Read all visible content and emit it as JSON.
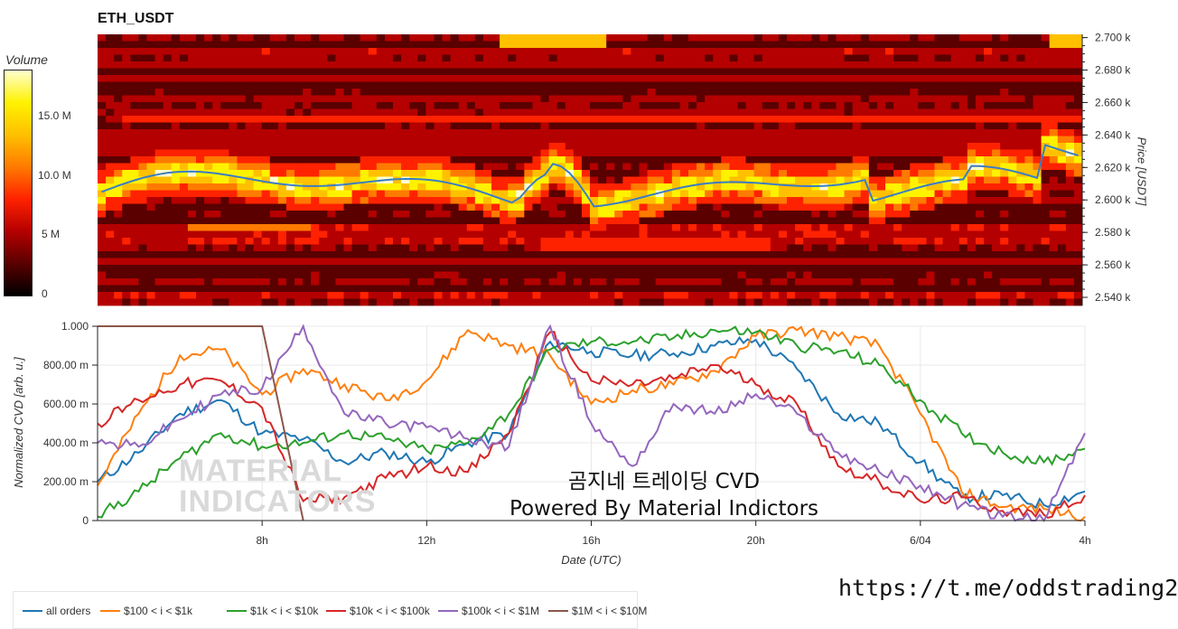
{
  "title": "ETH_USDT",
  "colorbar": {
    "title": "Volume",
    "ticks": [
      "15.0 M",
      "10.0 M",
      "5 M",
      "0"
    ],
    "stops": [
      "#000000",
      "#5a0000",
      "#b40000",
      "#ff2200",
      "#ff7a00",
      "#ffc000",
      "#fff200",
      "#ffffd0"
    ]
  },
  "heatmap": {
    "ylabel": "Price [USDT]",
    "price_ticks": [
      "2.700 k",
      "2.680 k",
      "2.660 k",
      "2.640 k",
      "2.620 k",
      "2.600 k",
      "2.580 k",
      "2.560 k",
      "2.540 k"
    ],
    "price_range": [
      2535,
      2702
    ],
    "cvd_price_line_color": "#3b7dc4"
  },
  "cvd": {
    "ylabel": "Normalized CVD [arb. u.]",
    "yticks": [
      "1.000",
      "800.00 m",
      "600.00 m",
      "400.00 m",
      "200.00 m",
      "0"
    ],
    "xlabel": "Date (UTC)",
    "xticks": [
      "8h",
      "12h",
      "16h",
      "20h",
      "6/04",
      "4h"
    ]
  },
  "legend": [
    {
      "label": "all orders",
      "color": "#1f77b4"
    },
    {
      "label": "$100 < i < $1k",
      "color": "#ff7f0e"
    },
    {
      "label": "$1k < i < $10k",
      "color": "#2ca02c"
    },
    {
      "label": "$10k < i < $100k",
      "color": "#d62728"
    },
    {
      "label": "$100k < i < $1M",
      "color": "#9467bd"
    },
    {
      "label": "$1M < i < $10M",
      "color": "#8c564b"
    }
  ],
  "overlay": {
    "line1": "곰지네 트레이딩 CVD",
    "line2": "Powered By Material Indictors"
  },
  "watermark": {
    "line1": "MATERIAL",
    "line2": "INDICATORS"
  },
  "url": "https://t.me/oddstrading2",
  "chart_data": {
    "type": "line",
    "title": "ETH_USDT",
    "xlabel": "Date (UTC)",
    "ylabel": "Normalized CVD [arb. u.]",
    "ylim": [
      0,
      1
    ],
    "x": [
      4,
      5,
      6,
      7,
      8,
      9,
      10,
      11,
      12,
      13,
      14,
      15,
      16,
      17,
      18,
      19,
      20,
      21,
      22,
      23,
      24,
      25,
      26,
      27,
      28
    ],
    "xtick_positions": {
      "8h": 8,
      "12h": 12,
      "16h": 16,
      "20h": 20,
      "6/04": 24,
      "4h": 28
    },
    "series": [
      {
        "name": "all orders",
        "values": [
          0.2,
          0.35,
          0.55,
          0.62,
          0.45,
          0.42,
          0.3,
          0.35,
          0.3,
          0.4,
          0.45,
          0.92,
          0.87,
          0.85,
          0.86,
          0.9,
          0.93,
          0.78,
          0.55,
          0.5,
          0.3,
          0.12,
          0.13,
          0.08,
          0.15
        ]
      },
      {
        "name": "$100 < i < $1k",
        "values": [
          0.18,
          0.55,
          0.85,
          0.88,
          0.65,
          0.78,
          0.7,
          0.62,
          0.72,
          0.98,
          0.9,
          0.85,
          0.6,
          0.67,
          0.7,
          0.77,
          0.95,
          0.98,
          0.95,
          0.9,
          0.55,
          0.15,
          0.07,
          0.06,
          0.02
        ]
      },
      {
        "name": "$1k < i < $10k",
        "values": [
          0.02,
          0.15,
          0.32,
          0.45,
          0.38,
          0.4,
          0.45,
          0.42,
          0.36,
          0.4,
          0.55,
          0.88,
          0.92,
          0.92,
          0.94,
          0.98,
          0.97,
          0.9,
          0.87,
          0.8,
          0.62,
          0.45,
          0.35,
          0.3,
          0.37
        ]
      },
      {
        "name": "$10k < i < $100k",
        "values": [
          0.5,
          0.62,
          0.7,
          0.72,
          0.58,
          0.1,
          0.12,
          0.22,
          0.28,
          0.25,
          0.45,
          0.97,
          0.72,
          0.7,
          0.73,
          0.8,
          0.7,
          0.6,
          0.28,
          0.2,
          0.1,
          0.12,
          0.05,
          0.03,
          0.13
        ]
      },
      {
        "name": "$100k < i < $1M",
        "values": [
          0.4,
          0.38,
          0.52,
          0.65,
          0.68,
          1.0,
          0.55,
          0.5,
          0.48,
          0.42,
          0.38,
          1.0,
          0.5,
          0.28,
          0.6,
          0.55,
          0.65,
          0.55,
          0.35,
          0.25,
          0.18,
          0.08,
          0.02,
          0.0,
          0.45
        ]
      },
      {
        "name": "$1M < i < $10M",
        "values": [
          1.0,
          1.0,
          1.0,
          1.0,
          1.0,
          0.0,
          null,
          null,
          null,
          null,
          null,
          null,
          null,
          null,
          null,
          null,
          null,
          null,
          null,
          null,
          null,
          null,
          null,
          null,
          null
        ]
      }
    ]
  }
}
